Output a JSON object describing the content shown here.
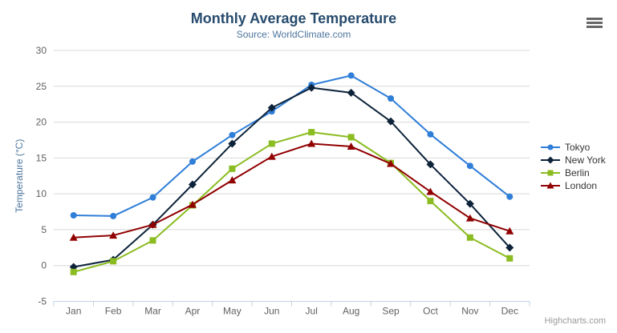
{
  "chart_data": {
    "type": "line",
    "title": "Monthly Average Temperature",
    "subtitle": "Source: WorldClimate.com",
    "categories": [
      "Jan",
      "Feb",
      "Mar",
      "Apr",
      "May",
      "Jun",
      "Jul",
      "Aug",
      "Sep",
      "Oct",
      "Nov",
      "Dec"
    ],
    "series": [
      {
        "name": "Tokyo",
        "color": "#2f7ed8",
        "marker": "circle",
        "values": [
          7.0,
          6.9,
          9.5,
          14.5,
          18.2,
          21.5,
          25.2,
          26.5,
          23.3,
          18.3,
          13.9,
          9.6
        ]
      },
      {
        "name": "New York",
        "color": "#0d233a",
        "marker": "diamond",
        "values": [
          -0.2,
          0.8,
          5.7,
          11.3,
          17.0,
          22.0,
          24.8,
          24.1,
          20.1,
          14.1,
          8.6,
          2.5
        ]
      },
      {
        "name": "Berlin",
        "color": "#8bbc21",
        "marker": "square",
        "values": [
          -0.9,
          0.6,
          3.5,
          8.4,
          13.5,
          17.0,
          18.6,
          17.9,
          14.3,
          9.0,
          3.9,
          1.0
        ]
      },
      {
        "name": "London",
        "color": "#910000",
        "marker": "triangle",
        "values": [
          3.9,
          4.2,
          5.7,
          8.5,
          11.9,
          15.2,
          17.0,
          16.6,
          14.2,
          10.3,
          6.6,
          4.8
        ]
      }
    ],
    "xlabel": "",
    "ylabel": "Temperature (°C)",
    "ylim": [
      -5,
      30
    ],
    "yticks": [
      -5,
      0,
      5,
      10,
      15,
      20,
      25,
      30
    ],
    "grid": true,
    "legend_position": "right"
  },
  "colors": {
    "grid": "#d8d8d8",
    "axis_line": "#c0d0e0",
    "tick_label": "#606060",
    "title": "#274b6d",
    "subtitle": "#4d759e",
    "axis_title": "#4d759e",
    "legend_text": "#333333",
    "credits": "#999999",
    "menu_icon": "#666666"
  },
  "menu": {
    "icon": "hamburger-icon"
  },
  "credits": {
    "label": "Highcharts.com"
  }
}
